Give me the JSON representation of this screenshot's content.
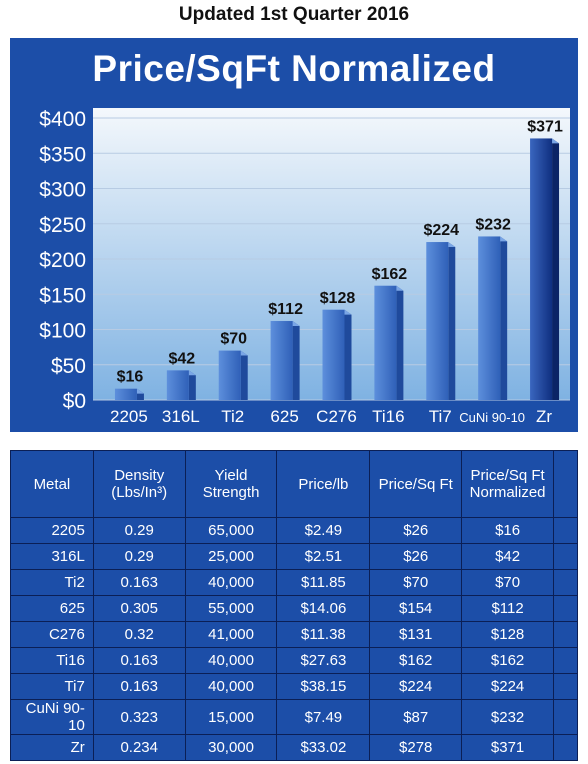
{
  "header": {
    "subtitle": "Updated 1st Quarter 2016"
  },
  "colors": {
    "panel": "#1c4ea8",
    "bar": "#3f73c9",
    "bar_dark": "#0f2f80",
    "plot_top": "#f4f8fc",
    "plot_bottom": "#7fb2e2"
  },
  "chart_data": {
    "type": "bar",
    "title": "Price/SqFt Normalized",
    "categories": [
      "2205",
      "316L",
      "Ti2",
      "625",
      "C276",
      "Ti16",
      "Ti7",
      "CuNi 90-10",
      "Zr"
    ],
    "values": [
      16,
      42,
      70,
      112,
      128,
      162,
      224,
      232,
      371
    ],
    "data_labels": [
      "$16",
      "$42",
      "$70",
      "$112",
      "$128",
      "$162",
      "$224",
      "$232",
      "$371"
    ],
    "y_ticks": [
      "$0",
      "$50",
      "$100",
      "$150",
      "$200",
      "$250",
      "$300",
      "$350",
      "$400"
    ],
    "ylim": [
      0,
      400
    ],
    "grid": true
  },
  "table": {
    "headers": [
      "Metal",
      "Density (Lbs/In³)",
      "Yield Strength",
      "Price/lb",
      "Price/Sq Ft",
      "Price/Sq Ft Normalized"
    ],
    "rows": [
      [
        "2205",
        "0.29",
        "65,000",
        "$2.49",
        "$26",
        "$16"
      ],
      [
        "316L",
        "0.29",
        "25,000",
        "$2.51",
        "$26",
        "$42"
      ],
      [
        "Ti2",
        "0.163",
        "40,000",
        "$11.85",
        "$70",
        "$70"
      ],
      [
        "625",
        "0.305",
        "55,000",
        "$14.06",
        "$154",
        "$112"
      ],
      [
        "C276",
        "0.32",
        "41,000",
        "$11.38",
        "$131",
        "$128"
      ],
      [
        "Ti16",
        "0.163",
        "40,000",
        "$27.63",
        "$162",
        "$162"
      ],
      [
        "Ti7",
        "0.163",
        "40,000",
        "$38.15",
        "$224",
        "$224"
      ],
      [
        "CuNi 90-10",
        "0.323",
        "15,000",
        "$7.49",
        "$87",
        "$232"
      ],
      [
        "Zr",
        "0.234",
        "30,000",
        "$33.02",
        "$278",
        "$371"
      ]
    ]
  }
}
